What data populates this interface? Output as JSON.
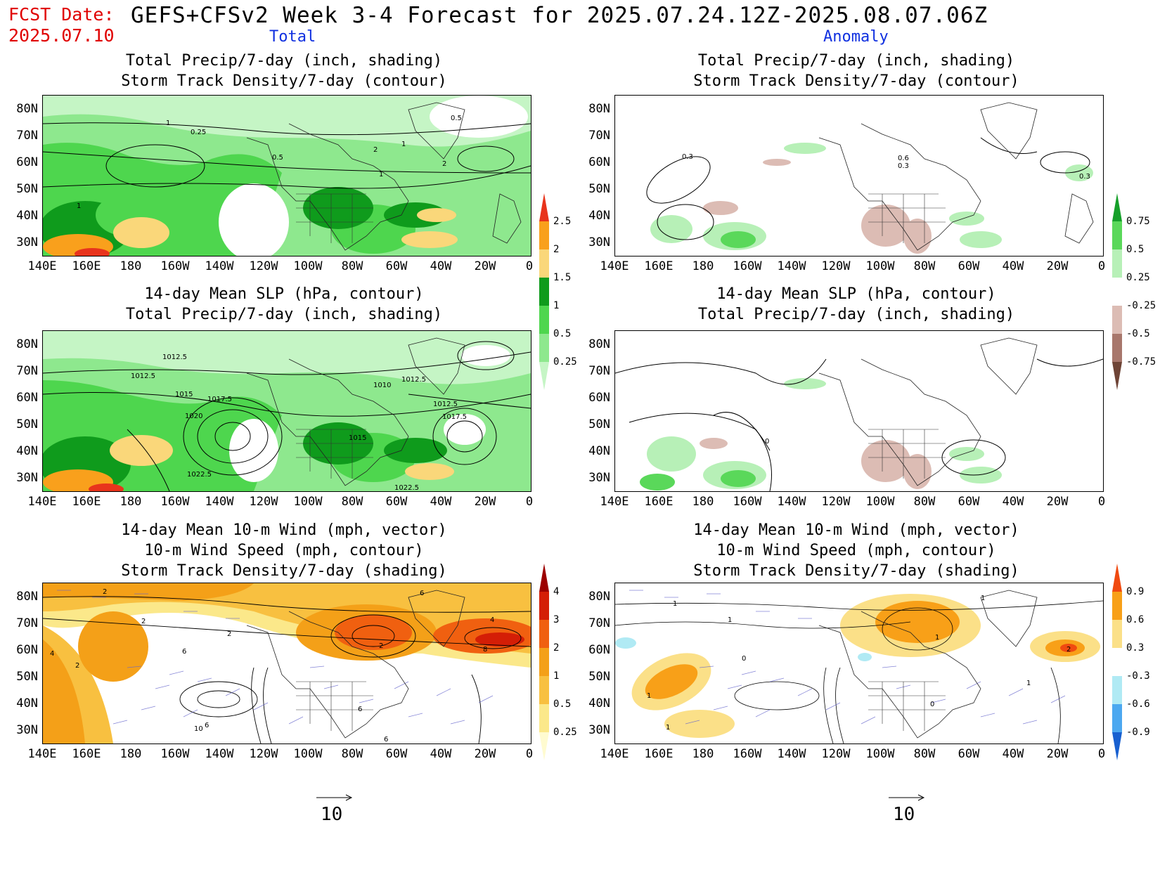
{
  "header": {
    "fcst_label": "FCST Date:",
    "fcst_date": "2025.07.10",
    "title": "GEFS+CFSv2 Week 3-4 Forecast for 2025.07.24.12Z-2025.08.07.06Z"
  },
  "columns": {
    "left": "Total",
    "right": "Anomaly"
  },
  "panels": {
    "row1": {
      "line1": "Total Precip/7-day (inch, shading)",
      "line2": "Storm Track Density/7-day (contour)"
    },
    "row2": {
      "line1": "14-day Mean SLP (hPa, contour)",
      "line2": "Total Precip/7-day (inch, shading)"
    },
    "row3": {
      "line1": "14-day Mean 10-m Wind (mph, vector)",
      "line2": "10-m Wind Speed (mph, contour)",
      "line3": "Storm Track Density/7-day (shading)"
    }
  },
  "axes": {
    "lat_labels": [
      "80N",
      "70N",
      "60N",
      "50N",
      "40N",
      "30N"
    ],
    "lon_labels": [
      "140E",
      "160E",
      "180",
      "160W",
      "140W",
      "120W",
      "100W",
      "80W",
      "60W",
      "40W",
      "20W",
      "0"
    ]
  },
  "colorbars": {
    "precip_total": {
      "labels": [
        "2.5",
        "2",
        "1.5",
        "1",
        "0.5",
        "0.25"
      ],
      "colors": [
        "#e8341c",
        "#f9a01c",
        "#fad77a",
        "#0f9b1c",
        "#4ed64e",
        "#8ee88e",
        "#c5f5c5"
      ]
    },
    "precip_anom": {
      "labels": [
        "0.75",
        "0.5",
        "0.25",
        "-0.25",
        "-0.5",
        "-0.75"
      ],
      "colors": [
        "#16a02a",
        "#5ad85a",
        "#b7f0b7",
        "#ffffff",
        "#dcbcb4",
        "#a8776c",
        "#6e4436"
      ]
    },
    "storm_total": {
      "labels": [
        "4",
        "3",
        "2",
        "1",
        "0.5",
        "0.25"
      ],
      "colors": [
        "#9c0000",
        "#d41e06",
        "#f06010",
        "#f4a018",
        "#f8c040",
        "#fbe88a",
        "#fffbd0"
      ]
    },
    "storm_anom": {
      "labels": [
        "0.9",
        "0.6",
        "0.3",
        "-0.3",
        "-0.6",
        "-0.9"
      ],
      "colors": [
        "#f04a10",
        "#f8a018",
        "#fbe088",
        "#ffffff",
        "#b0eaf4",
        "#4ca8f0",
        "#1860d0"
      ]
    }
  },
  "contour_labels": {
    "r1_total": [
      "1",
      "0.25",
      "0.5",
      "2",
      "1",
      "1",
      "2",
      "0.5",
      "1"
    ],
    "r1_anom": [
      "0.3",
      "0.6",
      "0.3",
      "0.3"
    ],
    "r2_total": [
      "1012.5",
      "1012.5",
      "1015",
      "1017.5",
      "1020",
      "1022.5",
      "1010",
      "1012.5",
      "1012.5",
      "1017.5",
      "1015",
      "1022.5"
    ],
    "r2_anom": [
      "0"
    ],
    "r3_total": [
      "2",
      "2",
      "4",
      "2",
      "6",
      "2",
      "2",
      "4",
      "6",
      "8",
      "6",
      "10",
      "6",
      "6"
    ],
    "r3_anom": [
      "1",
      "1",
      "1",
      "0",
      "1",
      "1",
      "0",
      "1",
      "2",
      "1"
    ]
  },
  "ref_vector": {
    "value": "10"
  }
}
